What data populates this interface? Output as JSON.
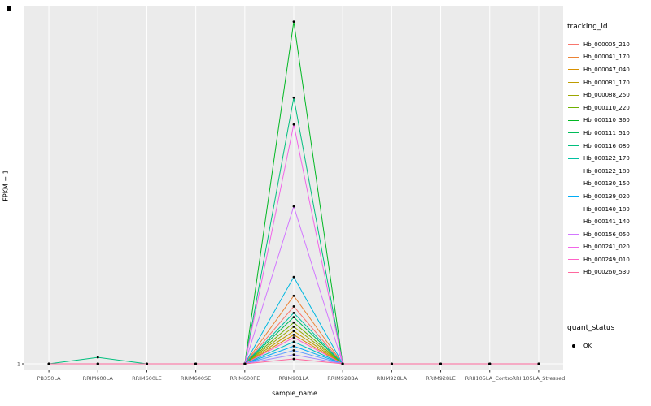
{
  "axes": {
    "y_tick_label": "1"
  },
  "legend": {
    "tracking_title": "tracking_id",
    "quant_title": "quant_status",
    "quant_items": [
      {
        "label": "OK"
      }
    ]
  },
  "chart_data": {
    "type": "line",
    "title": "",
    "xlabel": "sample_name",
    "ylabel": "FPKM + 1",
    "y_ticks": [
      1
    ],
    "ylim": [
      1,
      650
    ],
    "grid": true,
    "legend_position": "right",
    "panel_background": "#EBEBEB",
    "gridline_color": "#FFFFFF",
    "point_color": "#000000",
    "categories": [
      "PB350LA",
      "RRIM600LA",
      "RRIM600LE",
      "RRIM600SE",
      "RRIM600PE",
      "RRIM901LA",
      "RRIM928BA",
      "RRIM928LA",
      "RRIM928LE",
      "RRII105LA_Control",
      "RRII105LA_Stressed"
    ],
    "series": [
      {
        "name": "Hb_000005_210",
        "color": "#F8766D",
        "values": [
          1,
          1,
          1,
          1,
          1,
          108,
          1,
          1,
          1,
          1,
          1
        ]
      },
      {
        "name": "Hb_000041_170",
        "color": "#EB8335",
        "values": [
          1,
          1,
          1,
          1,
          1,
          128,
          1,
          1,
          1,
          1,
          1
        ]
      },
      {
        "name": "Hb_000047_040",
        "color": "#D89000",
        "values": [
          1,
          1,
          1,
          1,
          1,
          55,
          1,
          1,
          1,
          1,
          1
        ]
      },
      {
        "name": "Hb_000081_170",
        "color": "#BE9C00",
        "values": [
          1,
          1,
          1,
          1,
          1,
          62,
          1,
          1,
          1,
          1,
          1
        ]
      },
      {
        "name": "Hb_000088_250",
        "color": "#9CA700",
        "values": [
          1,
          1,
          1,
          1,
          1,
          70,
          1,
          1,
          1,
          1,
          1
        ]
      },
      {
        "name": "Hb_000110_220",
        "color": "#6FB000",
        "values": [
          1,
          1,
          1,
          1,
          1,
          78,
          1,
          1,
          1,
          1,
          1
        ]
      },
      {
        "name": "Hb_000110_360",
        "color": "#00B822",
        "values": [
          1,
          1,
          1,
          1,
          1,
          640,
          1,
          1,
          1,
          1,
          1
        ]
      },
      {
        "name": "Hb_000111_510",
        "color": "#00BC59",
        "values": [
          1,
          1,
          1,
          1,
          1,
          88,
          1,
          1,
          1,
          1,
          1
        ]
      },
      {
        "name": "Hb_000116_080",
        "color": "#00BF7D",
        "values": [
          1,
          13,
          1,
          1,
          1,
          498,
          1,
          1,
          1,
          1,
          1
        ]
      },
      {
        "name": "Hb_000122_170",
        "color": "#00C0A2",
        "values": [
          1,
          1,
          1,
          1,
          1,
          96,
          1,
          1,
          1,
          1,
          1
        ]
      },
      {
        "name": "Hb_000122_180",
        "color": "#00BEC3",
        "values": [
          1,
          1,
          1,
          1,
          1,
          42,
          1,
          1,
          1,
          1,
          1
        ]
      },
      {
        "name": "Hb_000130_150",
        "color": "#00B8E0",
        "values": [
          1,
          1,
          1,
          1,
          1,
          163,
          1,
          1,
          1,
          1,
          1
        ]
      },
      {
        "name": "Hb_000139_020",
        "color": "#00ACF6",
        "values": [
          1,
          1,
          1,
          1,
          1,
          34,
          1,
          1,
          1,
          1,
          1
        ]
      },
      {
        "name": "Hb_000140_180",
        "color": "#619CFF",
        "values": [
          1,
          1,
          1,
          1,
          1,
          26,
          1,
          1,
          1,
          1,
          1
        ]
      },
      {
        "name": "Hb_000141_140",
        "color": "#A58AFF",
        "values": [
          1,
          1,
          1,
          1,
          1,
          18,
          1,
          1,
          1,
          1,
          1
        ]
      },
      {
        "name": "Hb_000156_050",
        "color": "#D277FF",
        "values": [
          1,
          1,
          1,
          1,
          1,
          295,
          1,
          1,
          1,
          1,
          1
        ]
      },
      {
        "name": "Hb_000241_020",
        "color": "#F166E8",
        "values": [
          1,
          1,
          1,
          1,
          1,
          448,
          1,
          1,
          1,
          1,
          1
        ]
      },
      {
        "name": "Hb_000249_010",
        "color": "#FF61C7",
        "values": [
          1,
          1,
          1,
          1,
          1,
          50,
          1,
          1,
          1,
          1,
          1
        ]
      },
      {
        "name": "Hb_000260_530",
        "color": "#FF689E",
        "values": [
          1,
          1,
          1,
          1,
          1,
          10,
          1,
          1,
          1,
          1,
          1
        ]
      }
    ]
  }
}
